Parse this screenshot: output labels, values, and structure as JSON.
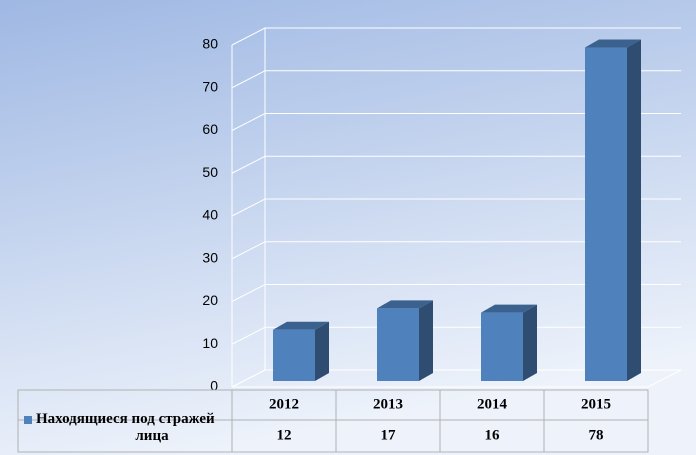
{
  "chart_data": {
    "type": "bar3d",
    "categories": [
      "2012",
      "2013",
      "2014",
      "2015"
    ],
    "series": [
      {
        "name": "Находящиеся под стражей лица",
        "color": "#4f81bd",
        "values": [
          12,
          17,
          16,
          78
        ]
      }
    ],
    "ylim": [
      0,
      80
    ],
    "yticks": [
      0,
      10,
      20,
      30,
      40,
      50,
      60,
      70,
      80
    ],
    "grid": true,
    "legend": "table"
  }
}
